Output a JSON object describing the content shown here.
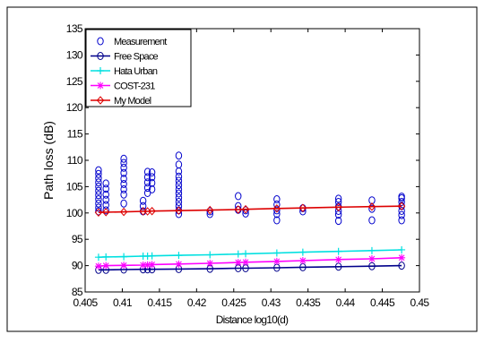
{
  "chart_data": {
    "type": "scatter",
    "title": "",
    "xlabel": "Distance log10(d)",
    "ylabel": "Path loss (dB)",
    "xlim": [
      0.405,
      0.45
    ],
    "ylim": [
      85,
      135
    ],
    "xticks": [
      0.405,
      0.41,
      0.415,
      0.42,
      0.425,
      0.43,
      0.435,
      0.44,
      0.445,
      0.45
    ],
    "xtick_labels": [
      "0.405",
      "0.41",
      "0.415",
      "0.42",
      "0.425",
      "0.43",
      "0.435",
      "0.44",
      "0.445",
      "0.45"
    ],
    "yticks": [
      85,
      90,
      95,
      100,
      105,
      110,
      115,
      120,
      125,
      130,
      135
    ],
    "ytick_labels": [
      "85",
      "90",
      "95",
      "100",
      "105",
      "110",
      "115",
      "120",
      "125",
      "130",
      "135"
    ],
    "grid": false,
    "legend_position": "top-left",
    "series": [
      {
        "name": "Measurement",
        "marker": "circle",
        "line": false,
        "color": "#0000cc",
        "points": [
          [
            0.4068,
            100.3
          ],
          [
            0.4068,
            101
          ],
          [
            0.4068,
            101.8
          ],
          [
            0.4068,
            102.6
          ],
          [
            0.4068,
            103.4
          ],
          [
            0.4068,
            104.2
          ],
          [
            0.4068,
            105
          ],
          [
            0.4068,
            105.8
          ],
          [
            0.4068,
            106.6
          ],
          [
            0.4068,
            107.4
          ],
          [
            0.4068,
            108.1
          ],
          [
            0.4078,
            100.5
          ],
          [
            0.4078,
            101.5
          ],
          [
            0.4078,
            102.5
          ],
          [
            0.4078,
            103.5
          ],
          [
            0.4078,
            104.6
          ],
          [
            0.4078,
            105.6
          ],
          [
            0.4102,
            101.8
          ],
          [
            0.4102,
            103.5
          ],
          [
            0.4102,
            104.5
          ],
          [
            0.4102,
            105.5
          ],
          [
            0.4102,
            106.5
          ],
          [
            0.4102,
            107.6
          ],
          [
            0.4102,
            108.6
          ],
          [
            0.4102,
            109.5
          ],
          [
            0.4102,
            110.3
          ],
          [
            0.4128,
            100.3
          ],
          [
            0.4128,
            101.3
          ],
          [
            0.4128,
            102.3
          ],
          [
            0.4134,
            103.8
          ],
          [
            0.4134,
            104.8
          ],
          [
            0.4134,
            105.8
          ],
          [
            0.4134,
            106.8
          ],
          [
            0.4134,
            107.8
          ],
          [
            0.414,
            104.5
          ],
          [
            0.414,
            105.7
          ],
          [
            0.414,
            106.8
          ],
          [
            0.414,
            107.7
          ],
          [
            0.4176,
            99.8
          ],
          [
            0.4176,
            100.5
          ],
          [
            0.4176,
            101.3
          ],
          [
            0.4176,
            102.1
          ],
          [
            0.4176,
            102.9
          ],
          [
            0.4176,
            103.7
          ],
          [
            0.4176,
            104.5
          ],
          [
            0.4176,
            105.3
          ],
          [
            0.4176,
            106.1
          ],
          [
            0.4176,
            106.9
          ],
          [
            0.4176,
            107.9
          ],
          [
            0.4176,
            109.2
          ],
          [
            0.4176,
            110.9
          ],
          [
            0.4218,
            99.8
          ],
          [
            0.4218,
            100.3
          ],
          [
            0.4256,
            100.6
          ],
          [
            0.4256,
            101.3
          ],
          [
            0.4256,
            103.2
          ],
          [
            0.4266,
            99.9
          ],
          [
            0.4266,
            100.5
          ],
          [
            0.4308,
            98.6
          ],
          [
            0.4308,
            99.8
          ],
          [
            0.4308,
            100.5
          ],
          [
            0.4308,
            101.6
          ],
          [
            0.4308,
            102.6
          ],
          [
            0.4343,
            100.3
          ],
          [
            0.4343,
            100.9
          ],
          [
            0.4391,
            98.5
          ],
          [
            0.4391,
            99.7
          ],
          [
            0.4391,
            100.4
          ],
          [
            0.4391,
            101.2
          ],
          [
            0.4391,
            102.1
          ],
          [
            0.4391,
            102.7
          ],
          [
            0.4436,
            98.6
          ],
          [
            0.4436,
            100.8
          ],
          [
            0.4436,
            102.4
          ],
          [
            0.4476,
            98.6
          ],
          [
            0.4476,
            99.6
          ],
          [
            0.4476,
            100.4
          ],
          [
            0.4476,
            101.3
          ],
          [
            0.4476,
            102.1
          ],
          [
            0.4476,
            102.8
          ],
          [
            0.4476,
            103.1
          ]
        ]
      },
      {
        "name": "Free Space",
        "marker": "circle",
        "line": true,
        "color": "#00008b",
        "points": [
          [
            0.4068,
            89.2
          ],
          [
            0.4078,
            89.2
          ],
          [
            0.4102,
            89.25
          ],
          [
            0.4128,
            89.3
          ],
          [
            0.4134,
            89.3
          ],
          [
            0.414,
            89.3
          ],
          [
            0.4176,
            89.35
          ],
          [
            0.4218,
            89.4
          ],
          [
            0.4256,
            89.5
          ],
          [
            0.4266,
            89.5
          ],
          [
            0.4308,
            89.6
          ],
          [
            0.4343,
            89.7
          ],
          [
            0.4391,
            89.8
          ],
          [
            0.4436,
            89.9
          ],
          [
            0.4476,
            90.0
          ]
        ]
      },
      {
        "name": "Hata Urban",
        "marker": "plus",
        "line": true,
        "color": "#00e0e0",
        "points": [
          [
            0.4068,
            91.6
          ],
          [
            0.4078,
            91.65
          ],
          [
            0.4102,
            91.7
          ],
          [
            0.4128,
            91.8
          ],
          [
            0.4134,
            91.8
          ],
          [
            0.414,
            91.85
          ],
          [
            0.4176,
            91.95
          ],
          [
            0.4218,
            92.05
          ],
          [
            0.4256,
            92.2
          ],
          [
            0.4266,
            92.25
          ],
          [
            0.4308,
            92.4
          ],
          [
            0.4343,
            92.55
          ],
          [
            0.4391,
            92.7
          ],
          [
            0.4436,
            92.85
          ],
          [
            0.4476,
            93.0
          ]
        ]
      },
      {
        "name": "COST-231",
        "marker": "star",
        "line": true,
        "color": "#ff00ff",
        "points": [
          [
            0.4068,
            89.9
          ],
          [
            0.4078,
            90.0
          ],
          [
            0.4102,
            90.05
          ],
          [
            0.4128,
            90.1
          ],
          [
            0.4134,
            90.15
          ],
          [
            0.414,
            90.2
          ],
          [
            0.4176,
            90.3
          ],
          [
            0.4218,
            90.45
          ],
          [
            0.4256,
            90.6
          ],
          [
            0.4266,
            90.65
          ],
          [
            0.4308,
            90.8
          ],
          [
            0.4343,
            90.95
          ],
          [
            0.4391,
            91.15
          ],
          [
            0.4436,
            91.3
          ],
          [
            0.4476,
            91.5
          ]
        ]
      },
      {
        "name": "My Model",
        "marker": "diamond",
        "line": true,
        "color": "#dd0000",
        "points": [
          [
            0.4068,
            100.1
          ],
          [
            0.4078,
            100.15
          ],
          [
            0.4102,
            100.2
          ],
          [
            0.4128,
            100.3
          ],
          [
            0.4134,
            100.3
          ],
          [
            0.414,
            100.35
          ],
          [
            0.4176,
            100.45
          ],
          [
            0.4218,
            100.55
          ],
          [
            0.4256,
            100.65
          ],
          [
            0.4266,
            100.7
          ],
          [
            0.4308,
            100.85
          ],
          [
            0.4343,
            100.95
          ],
          [
            0.4391,
            101.1
          ],
          [
            0.4436,
            101.2
          ],
          [
            0.4476,
            101.3
          ]
        ]
      }
    ]
  }
}
